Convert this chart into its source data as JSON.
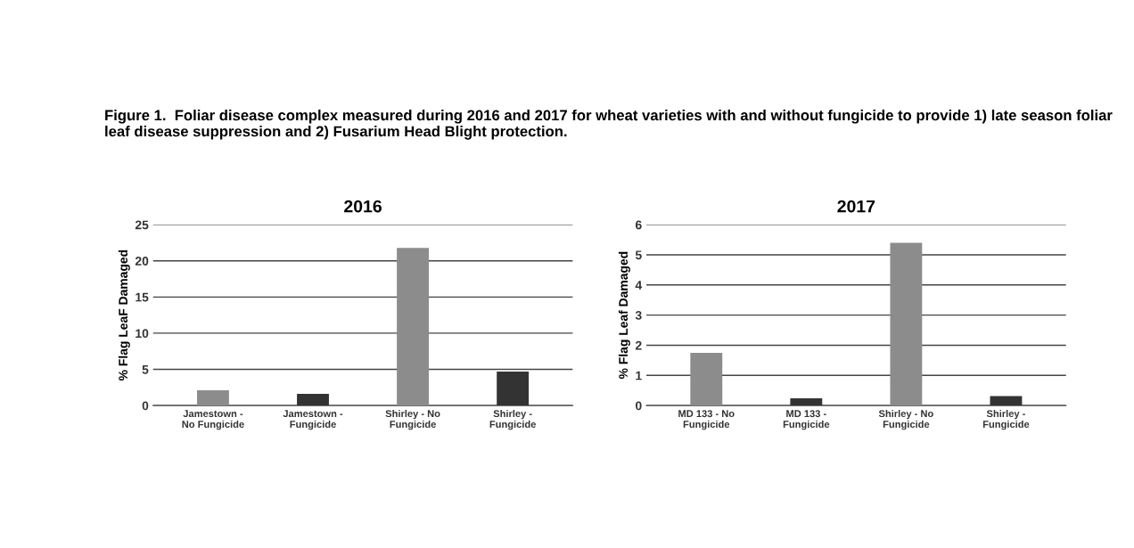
{
  "chart_data": [
    {
      "type": "bar",
      "title": "2016",
      "ylabel": "% Flag LeaF Damaged",
      "annotations": [
        "Figure 1.  Foliar disease complex measured during 2016 and 2017 for wheat varieties with and without fungicide to provide 1) late season foliar leaf disease suppression and 2) Fusarium Head Blight protection."
      ],
      "categories": [
        "Jamestown -\nNo Fungicide",
        "Jamestown -\nFungicide",
        "Shirley - No\nFungicide",
        "Shirley -\nFungicide"
      ],
      "values": [
        2.1,
        1.6,
        21.8,
        4.7
      ],
      "colors": [
        "#8c8c8c",
        "#333333",
        "#8c8c8c",
        "#333333"
      ],
      "ylim": [
        0,
        25
      ],
      "yticks": [
        0,
        5,
        10,
        15,
        20,
        25
      ],
      "grid": "y",
      "legend": false
    },
    {
      "type": "bar",
      "title": "2017",
      "ylabel": "% Flag Leaf Damaged",
      "categories": [
        "MD 133 - No\nFungicide",
        "MD 133 -\nFungicide",
        "Shirley - No\nFungicide",
        "Shirley -\nFungicide"
      ],
      "values": [
        1.75,
        0.24,
        5.4,
        0.31
      ],
      "colors": [
        "#8c8c8c",
        "#333333",
        "#8c8c8c",
        "#333333"
      ],
      "ylim": [
        0,
        6
      ],
      "yticks": [
        0,
        1,
        2,
        3,
        4,
        5,
        6
      ],
      "grid": "y",
      "legend": false
    }
  ]
}
